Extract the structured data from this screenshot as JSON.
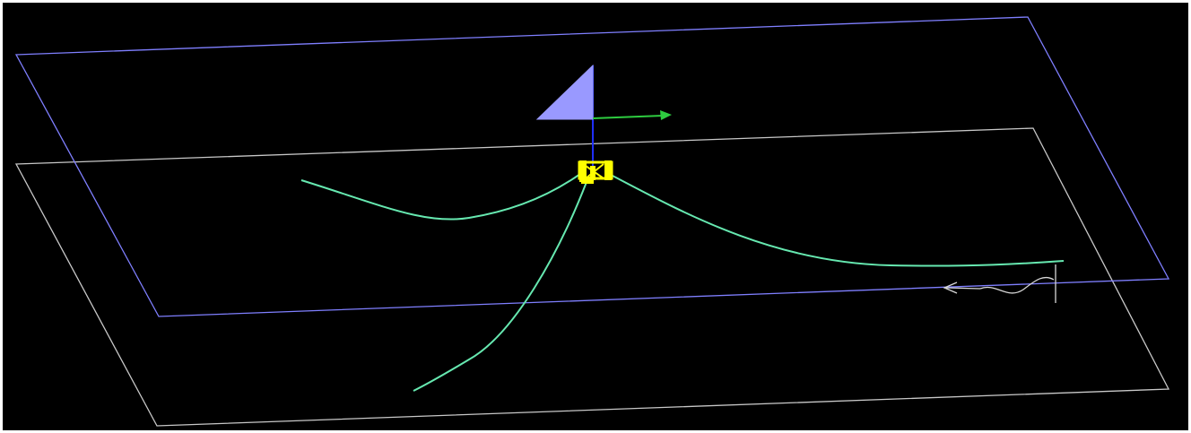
{
  "viewport": {
    "background_color": "#000000",
    "frame_color": "#ffffff"
  },
  "scene": {
    "water_surface": {
      "color": "#7f7fff"
    },
    "seabed": {
      "color": "#c8c8c8"
    },
    "mooring_lines": {
      "color": "#66e8b0",
      "count": 3
    },
    "floating_platform": {
      "color": "#ffff00"
    },
    "wind_indicator": {
      "color": "#9999ff"
    },
    "axis_y": {
      "color": "#2ecc40"
    },
    "axis_z": {
      "color": "#1f2fff"
    },
    "wave_indicator": {
      "color": "#d8d8d8"
    }
  }
}
